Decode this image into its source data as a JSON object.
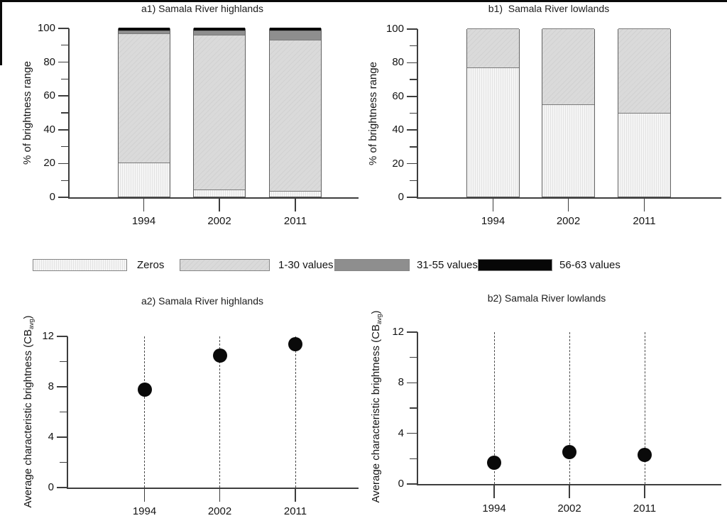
{
  "figure": {
    "legend": {
      "items": [
        {
          "key": "zeros",
          "label": "Zeros"
        },
        {
          "key": "v1_30",
          "label": "1-30 values"
        },
        {
          "key": "v31_55",
          "label": "31-55 values"
        },
        {
          "key": "v56_63",
          "label": "56-63 values"
        }
      ]
    },
    "colors": {
      "zeros_fill": "#f5f5f5",
      "zeros_stripe": "#e3e3e3",
      "v1_30_fill": "#d8d8d8",
      "v31_55_fill": "#8e8e8e",
      "v56_63_fill": "#070707",
      "axis": "#3d3d3d",
      "point": "#0a0a0a"
    }
  },
  "chart_data": [
    {
      "id": "a1",
      "type": "bar",
      "stacked": true,
      "title": "a1) Samala River highlands",
      "xlabel": "",
      "ylabel": "% of brightness range",
      "categories": [
        "1994",
        "2002",
        "2011"
      ],
      "series": [
        {
          "name": "Zeros",
          "key": "zeros",
          "values": [
            20.0,
            4.0,
            3.5
          ]
        },
        {
          "name": "1-30 values",
          "key": "v1_30",
          "values": [
            76.5,
            92.0,
            89.5
          ]
        },
        {
          "name": "31-55 values",
          "key": "v31_55",
          "values": [
            2.0,
            2.5,
            5.5
          ]
        },
        {
          "name": "56-63 values",
          "key": "v56_63",
          "values": [
            1.5,
            1.5,
            1.5
          ]
        }
      ],
      "ylim": [
        0,
        100
      ],
      "yticks_major": [
        0,
        20,
        40,
        60,
        80,
        100
      ],
      "yticks_minor": [
        10,
        30,
        50,
        70,
        90
      ],
      "grid": false,
      "legend_position": "below-shared"
    },
    {
      "id": "b1",
      "type": "bar",
      "stacked": true,
      "title": "b1)  Samala River lowlands",
      "xlabel": "",
      "ylabel": "% of brightness range",
      "categories": [
        "1994",
        "2002",
        "2011"
      ],
      "series": [
        {
          "name": "Zeros",
          "key": "zeros",
          "values": [
            77.0,
            55.0,
            50.0
          ]
        },
        {
          "name": "1-30 values",
          "key": "v1_30",
          "values": [
            23.0,
            45.0,
            50.0
          ]
        },
        {
          "name": "31-55 values",
          "key": "v31_55",
          "values": [
            0,
            0,
            0
          ]
        },
        {
          "name": "56-63 values",
          "key": "v56_63",
          "values": [
            0,
            0,
            0
          ]
        }
      ],
      "ylim": [
        0,
        100
      ],
      "yticks_major": [
        0,
        20,
        40,
        60,
        80,
        100
      ],
      "yticks_minor": [
        10,
        30,
        50,
        70,
        90
      ],
      "grid": false,
      "legend_position": "below-shared"
    },
    {
      "id": "a2",
      "type": "scatter",
      "title": "a2) Samala River highlands",
      "xlabel": "",
      "ylabel_parts": [
        "Average characteristic brightness (CB",
        "avg",
        ")"
      ],
      "categories": [
        "1994",
        "2002",
        "2011"
      ],
      "values": [
        7.8,
        10.5,
        11.4
      ],
      "ylim": [
        0,
        12
      ],
      "yticks_major": [
        0,
        4,
        8,
        12
      ],
      "yticks_minor": [
        2,
        6,
        10
      ],
      "guides": "dashed vertical line at each year spanning 0 to 12",
      "grid": false
    },
    {
      "id": "b2",
      "type": "scatter",
      "title": "b2) Samala River lowlands",
      "xlabel": "",
      "ylabel_parts": [
        "Average characteristic brightness (CB",
        "avg",
        ")"
      ],
      "categories": [
        "1994",
        "2002",
        "2011"
      ],
      "values": [
        1.7,
        2.5,
        2.3
      ],
      "ylim": [
        0,
        12
      ],
      "yticks_major": [
        0,
        4,
        8,
        12
      ],
      "yticks_minor": [
        2,
        6,
        10
      ],
      "guides": "dashed vertical line at each year spanning 0 to 12",
      "grid": false
    }
  ]
}
